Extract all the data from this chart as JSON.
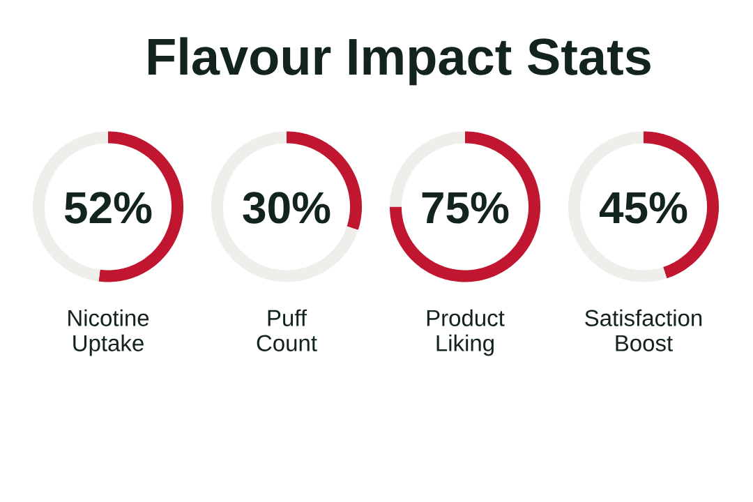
{
  "chart_data": [
    {
      "type": "donut",
      "title": "Flavour Impact Stats",
      "xlabel": "Nicotine Uptake",
      "categories": [
        null,
        null
      ],
      "values": [
        52,
        48
      ],
      "colors": [
        "#c1162f",
        "#efeeeb"
      ],
      "annotations": [
        "52%"
      ]
    },
    {
      "type": "donut",
      "xlabel": "Puff Count",
      "categories": [
        null,
        null
      ],
      "values": [
        30,
        70
      ],
      "colors": [
        "#c1162f",
        "#efeeeb"
      ],
      "annotations": [
        "30%"
      ]
    },
    {
      "type": "donut",
      "xlabel": "Product Liking",
      "categories": [
        null,
        null
      ],
      "values": [
        75,
        25
      ],
      "colors": [
        "#c1162f",
        "#efeeeb"
      ],
      "annotations": [
        "75%"
      ]
    },
    {
      "type": "donut",
      "xlabel": "Satisfaction Boost",
      "categories": [
        null,
        null
      ],
      "values": [
        45,
        55
      ],
      "colors": [
        "#c1162f",
        "#efeeeb"
      ],
      "annotations": [
        "45%"
      ]
    }
  ]
}
